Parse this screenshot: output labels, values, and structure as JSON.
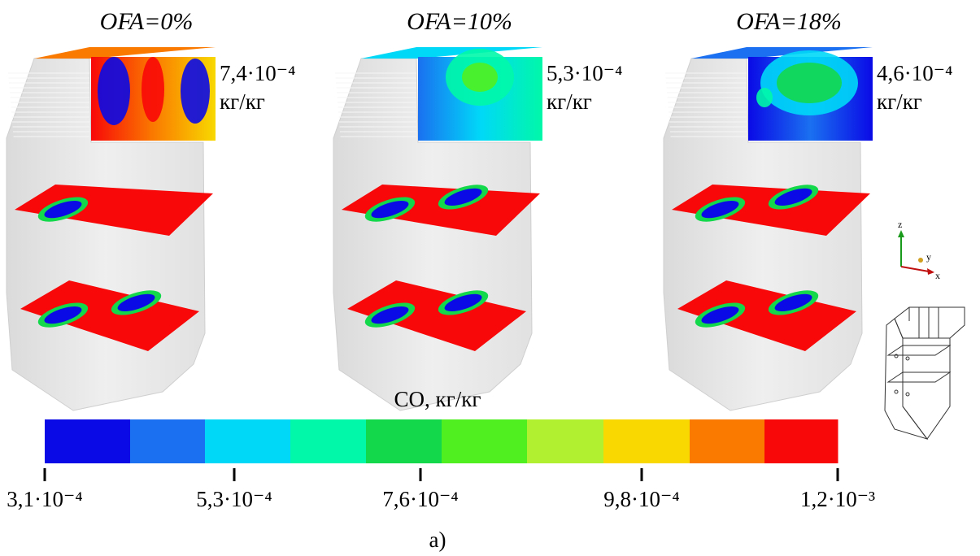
{
  "panels": [
    {
      "title": "OFA=0%",
      "value": "7,4·10⁻⁴",
      "unit": "кг/кг"
    },
    {
      "title": "OFA=10%",
      "value": "5,3·10⁻⁴",
      "unit": "кг/кг"
    },
    {
      "title": "OFA=18%",
      "value": "4,6·10⁻⁴",
      "unit": "кг/кг"
    }
  ],
  "colorbar": {
    "label": "CO, кг/кг",
    "colors": [
      "#0a0ae6",
      "#1a70f0",
      "#00d8f8",
      "#00f8a8",
      "#14d84c",
      "#50f020",
      "#b0f030",
      "#f8d800",
      "#fa7a00",
      "#f80808"
    ],
    "ticks": [
      "3,1·10⁻⁴",
      "5,3·10⁻⁴",
      "7,6·10⁻⁴",
      "9,8·10⁻⁴",
      "1,2·10⁻³"
    ]
  },
  "axes": {
    "z": "z",
    "y": "y",
    "x": "x"
  },
  "caption": "а)"
}
